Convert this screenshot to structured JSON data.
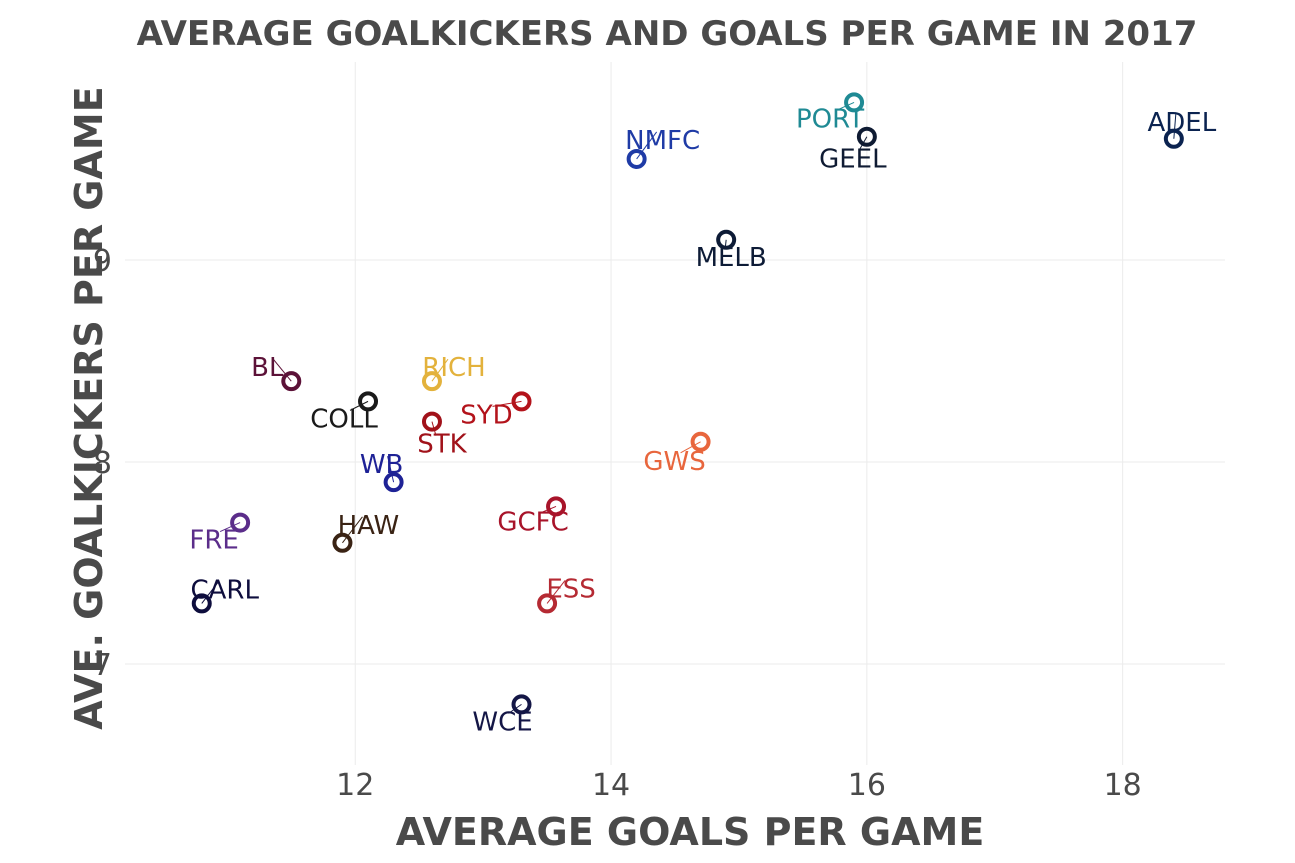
{
  "chart_data": {
    "type": "scatter",
    "title": "AVERAGE GOALKICKERS AND GOALS PER GAME IN 2017",
    "xlabel": "AVERAGE GOALS PER GAME",
    "ylabel": "AVE. GOALKICKERS PER GAME",
    "xlim": [
      10.2,
      18.8
    ],
    "ylim": [
      6.5,
      9.98
    ],
    "xticks": [
      12,
      14,
      16,
      18
    ],
    "yticks": [
      7,
      8,
      9
    ],
    "grid": true,
    "legend": "none",
    "points": [
      {
        "label": "ADEL",
        "x": 18.4,
        "y": 9.6,
        "color": "#0b2350"
      },
      {
        "label": "PORT",
        "x": 15.9,
        "y": 9.78,
        "color": "#1f8a94"
      },
      {
        "label": "GEEL",
        "x": 16.0,
        "y": 9.61,
        "color": "#0f1b33"
      },
      {
        "label": "NMFC",
        "x": 14.2,
        "y": 9.5,
        "color": "#1f3ba6"
      },
      {
        "label": "MELB",
        "x": 14.9,
        "y": 9.1,
        "color": "#0d1b36"
      },
      {
        "label": "BL",
        "x": 11.5,
        "y": 8.4,
        "color": "#5c1238"
      },
      {
        "label": "RICH",
        "x": 12.6,
        "y": 8.4,
        "color": "#e3b23c"
      },
      {
        "label": "COLL",
        "x": 12.1,
        "y": 8.3,
        "color": "#1a1a1a"
      },
      {
        "label": "SYD",
        "x": 13.3,
        "y": 8.3,
        "color": "#b3131b"
      },
      {
        "label": "STK",
        "x": 12.6,
        "y": 8.2,
        "color": "#a1121a"
      },
      {
        "label": "GWS",
        "x": 14.7,
        "y": 8.1,
        "color": "#e8663d"
      },
      {
        "label": "WB",
        "x": 12.3,
        "y": 7.9,
        "color": "#1e2296"
      },
      {
        "label": "GCFC",
        "x": 13.57,
        "y": 7.78,
        "color": "#a8142a"
      },
      {
        "label": "FRE",
        "x": 11.1,
        "y": 7.7,
        "color": "#5b2d8a"
      },
      {
        "label": "HAW",
        "x": 11.9,
        "y": 7.6,
        "color": "#3a2314"
      },
      {
        "label": "CARL",
        "x": 10.8,
        "y": 7.3,
        "color": "#0e0d3d"
      },
      {
        "label": "ESS",
        "x": 13.5,
        "y": 7.3,
        "color": "#b52a33"
      },
      {
        "label": "WCE",
        "x": 13.3,
        "y": 6.8,
        "color": "#141646"
      }
    ]
  }
}
